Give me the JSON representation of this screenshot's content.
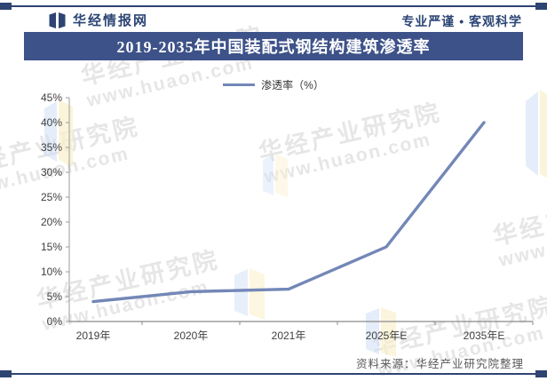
{
  "header": {
    "brand": "华经情报网",
    "slogan": "专业严谨 • 客观科学"
  },
  "title": "2019-2035年中国装配式钢结构建筑渗透率",
  "legend": {
    "label": "渗透率（%）"
  },
  "chart_data": {
    "type": "line",
    "categories": [
      "2019年",
      "2020年",
      "2021年",
      "2025年E",
      "2035年E"
    ],
    "series": [
      {
        "name": "渗透率（%）",
        "values": [
          4,
          6,
          6.5,
          15,
          40
        ]
      }
    ],
    "title": "2019-2035年中国装配式钢结构建筑渗透率",
    "xlabel": "",
    "ylabel": "",
    "ylim": [
      0,
      45
    ],
    "ytick_step": 5,
    "ytick_suffix": "%",
    "grid": false,
    "legend_position": "top-center",
    "line_color": "#7387b7"
  },
  "footer": {
    "source": "资料来源：华经产业研究院整理"
  },
  "watermark": {
    "line1": "华经产业研究院",
    "line2": "www.huaon.com"
  },
  "colors": {
    "frame": "#2e4472",
    "banner_bg": "#3d5288",
    "series_line": "#7387b7",
    "axis": "#9b9b9b",
    "tick_text": "#404040",
    "source_text": "#595959",
    "ribbon_blue": "#cfdff5",
    "ribbon_yellow": "#fbf0cb"
  }
}
